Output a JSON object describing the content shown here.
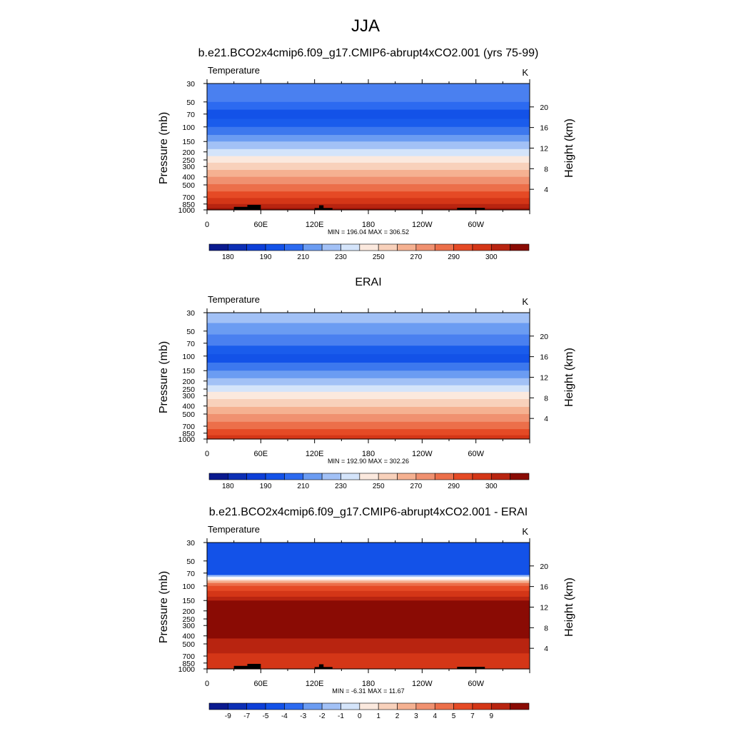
{
  "figure": {
    "title": "JJA"
  },
  "chart_data": [
    {
      "type": "heatmap",
      "title": "b.e21.BCO2x4cmip6.f09_g17.CMIP6-abrupt4xCO2.001 (yrs 75-99)",
      "left_label": "Temperature",
      "right_label": "K",
      "ylabel": "Pressure (mb)",
      "y2label": "Height (km)",
      "y_ticks": [
        30,
        50,
        70,
        100,
        150,
        200,
        250,
        300,
        400,
        500,
        700,
        850,
        1000
      ],
      "y2_ticks": [
        4,
        8,
        12,
        16,
        20
      ],
      "x_ticks": [
        "0",
        "60E",
        "120E",
        "180",
        "120W",
        "60W"
      ],
      "stats": "MIN = 196.04  MAX = 306.52",
      "colorbar_labels": [
        "180",
        "190",
        "210",
        "230",
        "250",
        "270",
        "290",
        "300"
      ],
      "bands": [
        {
          "top": 30,
          "bottom": 50,
          "color": "#4a80f0"
        },
        {
          "top": 50,
          "bottom": 62,
          "color": "#2c6af0"
        },
        {
          "top": 62,
          "bottom": 80,
          "color": "#1352e8"
        },
        {
          "top": 80,
          "bottom": 100,
          "color": "#1a5cec"
        },
        {
          "top": 100,
          "bottom": 125,
          "color": "#3d78ee"
        },
        {
          "top": 125,
          "bottom": 150,
          "color": "#6b9cf2"
        },
        {
          "top": 150,
          "bottom": 185,
          "color": "#a2c1f6"
        },
        {
          "top": 185,
          "bottom": 225,
          "color": "#d4e4fa"
        },
        {
          "top": 225,
          "bottom": 270,
          "color": "#fbe9de"
        },
        {
          "top": 270,
          "bottom": 330,
          "color": "#f8d1bb"
        },
        {
          "top": 330,
          "bottom": 400,
          "color": "#f5b191"
        },
        {
          "top": 400,
          "bottom": 490,
          "color": "#f09170"
        },
        {
          "top": 490,
          "bottom": 600,
          "color": "#ec6f4a"
        },
        {
          "top": 600,
          "bottom": 720,
          "color": "#e54a25"
        },
        {
          "top": 720,
          "bottom": 850,
          "color": "#d43617"
        },
        {
          "top": 850,
          "bottom": 950,
          "color": "#b82410"
        },
        {
          "top": 950,
          "bottom": 1000,
          "color": "#9a1408"
        }
      ],
      "terrain": [
        [
          30,
          50,
          920
        ],
        [
          45,
          60,
          870
        ],
        [
          120,
          140,
          950
        ],
        [
          125,
          130,
          880
        ],
        [
          279,
          310,
          945
        ]
      ]
    },
    {
      "type": "heatmap",
      "title": "ERAI",
      "left_label": "Temperature",
      "right_label": "K",
      "ylabel": "Pressure (mb)",
      "y2label": "Height (km)",
      "y_ticks": [
        30,
        50,
        70,
        100,
        150,
        200,
        250,
        300,
        400,
        500,
        700,
        850,
        1000
      ],
      "y2_ticks": [
        4,
        8,
        12,
        16,
        20
      ],
      "x_ticks": [
        "0",
        "60E",
        "120E",
        "180",
        "120W",
        "60W"
      ],
      "stats": "MIN = 192.90  MAX = 302.26",
      "colorbar_labels": [
        "180",
        "190",
        "210",
        "230",
        "250",
        "270",
        "290",
        "300"
      ],
      "bands": [
        {
          "top": 30,
          "bottom": 40,
          "color": "#a2c1f6"
        },
        {
          "top": 40,
          "bottom": 55,
          "color": "#6b9cf2"
        },
        {
          "top": 55,
          "bottom": 75,
          "color": "#4a80f0"
        },
        {
          "top": 75,
          "bottom": 95,
          "color": "#1a5cec"
        },
        {
          "top": 95,
          "bottom": 120,
          "color": "#1352e8"
        },
        {
          "top": 120,
          "bottom": 150,
          "color": "#3d78ee"
        },
        {
          "top": 150,
          "bottom": 185,
          "color": "#6b9cf2"
        },
        {
          "top": 185,
          "bottom": 225,
          "color": "#a2c1f6"
        },
        {
          "top": 225,
          "bottom": 270,
          "color": "#d4e4fa"
        },
        {
          "top": 270,
          "bottom": 330,
          "color": "#fbe9de"
        },
        {
          "top": 330,
          "bottom": 410,
          "color": "#f8d1bb"
        },
        {
          "top": 410,
          "bottom": 500,
          "color": "#f5b191"
        },
        {
          "top": 500,
          "bottom": 620,
          "color": "#f09170"
        },
        {
          "top": 620,
          "bottom": 760,
          "color": "#ec6f4a"
        },
        {
          "top": 760,
          "bottom": 900,
          "color": "#e54a25"
        },
        {
          "top": 900,
          "bottom": 1000,
          "color": "#d43617"
        }
      ],
      "terrain": []
    },
    {
      "type": "heatmap",
      "title": "b.e21.BCO2x4cmip6.f09_g17.CMIP6-abrupt4xCO2.001 - ERAI",
      "left_label": "Temperature",
      "right_label": "K",
      "ylabel": "Pressure (mb)",
      "y2label": "Height (km)",
      "y_ticks": [
        30,
        50,
        70,
        100,
        150,
        200,
        250,
        300,
        400,
        500,
        700,
        850,
        1000
      ],
      "y2_ticks": [
        4,
        8,
        12,
        16,
        20
      ],
      "x_ticks": [
        "0",
        "60E",
        "120E",
        "180",
        "120W",
        "60W"
      ],
      "stats": "MIN =  -6.31  MAX =  11.67",
      "colorbar_labels": [
        "-9",
        "-7",
        "-5",
        "-4",
        "-3",
        "-2",
        "-1",
        "0",
        "1",
        "2",
        "3",
        "4",
        "5",
        "7",
        "9"
      ],
      "bands": [
        {
          "top": 30,
          "bottom": 74,
          "color": "#1352e8"
        },
        {
          "top": 74,
          "bottom": 78,
          "color": "#a2c1f6"
        },
        {
          "top": 78,
          "bottom": 82,
          "color": "#ffffff"
        },
        {
          "top": 82,
          "bottom": 86,
          "color": "#fbe9de"
        },
        {
          "top": 86,
          "bottom": 92,
          "color": "#f5b191"
        },
        {
          "top": 92,
          "bottom": 100,
          "color": "#ec6f4a"
        },
        {
          "top": 100,
          "bottom": 115,
          "color": "#e54a25"
        },
        {
          "top": 115,
          "bottom": 135,
          "color": "#d43617"
        },
        {
          "top": 135,
          "bottom": 150,
          "color": "#b82410"
        },
        {
          "top": 150,
          "bottom": 430,
          "color": "#8a0b04"
        },
        {
          "top": 430,
          "bottom": 650,
          "color": "#b82410"
        },
        {
          "top": 650,
          "bottom": 1000,
          "color": "#d43617"
        }
      ],
      "terrain": [
        [
          30,
          50,
          920
        ],
        [
          45,
          60,
          870
        ],
        [
          120,
          140,
          950
        ],
        [
          125,
          130,
          880
        ],
        [
          279,
          310,
          945
        ]
      ]
    }
  ],
  "colorbar": {
    "colors": [
      "#0a1a8f",
      "#0c2fb5",
      "#0d3fd8",
      "#1352e8",
      "#2c6af0",
      "#6b9cf2",
      "#a2c1f6",
      "#d4e4fa",
      "#fbe9de",
      "#f8d1bb",
      "#f5b191",
      "#f09170",
      "#ec6f4a",
      "#e54a25",
      "#d43617",
      "#b82410",
      "#8a0b04"
    ]
  }
}
